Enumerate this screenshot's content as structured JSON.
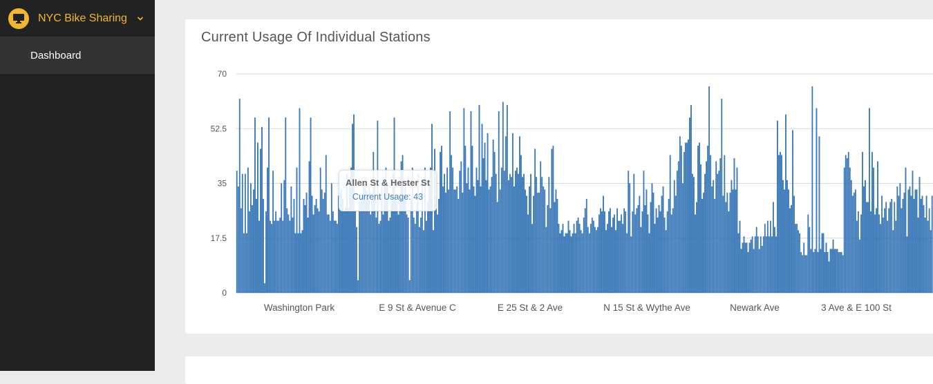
{
  "app": {
    "title": "NYC Bike Sharing",
    "brand_icon": "monitor-icon"
  },
  "sidebar": {
    "items": [
      {
        "label": "Dashboard",
        "active": true
      }
    ]
  },
  "colors": {
    "accent": "#f3b72b",
    "bar": "#3a7bbf",
    "bar_edge": "#1f5f9f",
    "sidebar_bg": "#222222",
    "active_item_bg": "#333333"
  },
  "chart": {
    "title": "Current Usage Of Individual Stations"
  },
  "tooltip": {
    "station": "Allen St & Hester St",
    "value_text": "Current Usage: 43"
  },
  "chart_data": {
    "type": "bar",
    "title": "Current Usage Of Individual Stations",
    "xlabel": "",
    "ylabel": "",
    "ylim": [
      0,
      70
    ],
    "yticks": [
      "0",
      "17.5",
      "35",
      "52.5",
      "70"
    ],
    "grid": true,
    "visible_category_labels": [
      "Washington Park",
      "E 9 St & Avenue C",
      "E 25 St & 2 Ave",
      "N 15 St & Wythe Ave",
      "Newark Ave",
      "3 Ave & E 100 St"
    ],
    "series": [
      {
        "values": [
          39,
          34,
          62,
          27,
          38,
          19,
          38,
          19,
          40,
          26,
          35,
          28,
          33,
          56,
          30,
          48,
          23,
          46,
          53,
          30,
          3,
          26,
          40,
          56,
          23,
          22,
          39,
          23,
          26,
          23,
          23,
          24,
          35,
          23,
          36,
          56,
          27,
          25,
          23,
          34,
          24,
          30,
          19,
          40,
          19,
          59,
          19,
          20,
          30,
          28,
          32,
          24,
          42,
          56,
          31,
          25,
          28,
          30,
          27,
          26,
          40,
          33,
          30,
          32,
          44,
          25,
          25,
          23,
          35,
          26,
          23,
          23,
          22,
          31,
          32,
          33,
          30,
          26,
          27,
          38,
          27,
          35,
          40,
          54,
          57,
          26,
          21,
          4,
          29,
          30,
          31,
          35,
          35,
          33,
          30,
          35,
          25,
          30,
          45,
          36,
          24,
          55,
          22,
          23,
          35,
          25,
          36,
          40,
          35,
          23,
          24,
          31,
          38,
          56,
          30,
          29,
          25,
          30,
          42,
          44,
          31,
          36,
          25,
          24,
          4,
          30,
          40,
          24,
          22,
          28,
          38,
          21,
          24,
          36,
          20,
          40,
          23,
          29,
          36,
          40,
          54,
          20,
          46,
          31,
          25,
          30,
          45,
          47,
          34,
          38,
          32,
          40,
          33,
          58,
          44,
          40,
          33,
          33,
          34,
          30,
          39,
          42,
          32,
          59,
          47,
          35,
          40,
          33,
          58,
          47,
          34,
          31,
          40,
          36,
          60,
          34,
          54,
          43,
          48,
          36,
          51,
          33,
          34,
          37,
          49,
          45,
          38,
          29,
          58,
          33,
          40,
          61,
          39,
          50,
          60,
          36,
          38,
          37,
          51,
          34,
          39,
          40,
          38,
          50,
          44,
          37,
          38,
          33,
          31,
          25,
          34,
          38,
          22,
          31,
          46,
          37,
          32,
          32,
          42,
          37,
          34,
          33,
          21,
          28,
          37,
          27,
          46,
          47,
          29,
          33,
          30,
          22,
          19,
          20,
          22,
          18,
          19,
          19,
          23,
          20,
          18,
          19,
          22,
          19,
          23,
          24,
          22,
          20,
          19,
          24,
          27,
          30,
          21,
          19,
          22,
          24,
          23,
          21,
          20,
          21,
          25,
          27,
          26,
          31,
          26,
          20,
          22,
          26,
          27,
          21,
          24,
          25,
          20,
          27,
          23,
          23,
          25,
          22,
          27,
          26,
          19,
          39,
          35,
          18,
          26,
          38,
          25,
          27,
          28,
          31,
          21,
          26,
          39,
          28,
          33,
          25,
          19,
          29,
          35,
          32,
          22,
          27,
          24,
          28,
          26,
          31,
          34,
          24,
          20,
          26,
          30,
          44,
          25,
          27,
          36,
          31,
          39,
          42,
          50,
          47,
          35,
          45,
          48,
          48,
          49,
          56,
          60,
          38,
          37,
          25,
          29,
          47,
          48,
          41,
          30,
          32,
          38,
          42,
          47,
          66,
          44,
          34,
          36,
          30,
          42,
          38,
          39,
          43,
          62,
          31,
          44,
          29,
          32,
          26,
          32,
          36,
          33,
          43,
          33,
          40,
          19,
          23,
          14,
          16,
          18,
          16,
          16,
          13,
          16,
          17,
          18,
          14,
          18,
          21,
          18,
          14,
          18,
          15,
          18,
          22,
          18,
          23,
          18,
          23,
          18,
          29,
          21,
          18,
          55,
          44,
          45,
          44,
          36,
          33,
          57,
          36,
          33,
          27,
          28,
          52,
          31,
          22,
          22,
          20,
          19,
          13,
          12,
          16,
          12,
          12,
          25,
          21,
          14,
          66,
          13,
          14,
          59,
          13,
          50,
          14,
          19,
          19,
          13,
          16,
          13,
          10,
          14,
          14,
          17,
          14,
          14,
          14,
          13,
          13,
          13,
          12,
          40,
          44,
          43,
          45,
          40,
          36,
          31,
          32,
          33,
          23,
          26,
          17,
          25,
          45,
          34,
          36,
          29,
          29,
          59,
          26,
          45,
          40,
          25,
          27,
          42,
          25,
          22,
          31,
          24,
          27,
          29,
          23,
          27,
          29,
          30,
          20,
          29,
          23,
          34,
          31,
          35,
          27,
          30,
          32,
          40,
          18,
          33,
          34,
          31,
          39,
          30,
          33,
          33,
          24,
          37,
          30,
          31,
          28,
          24,
          31,
          23,
          27,
          20,
          31
        ]
      }
    ]
  }
}
